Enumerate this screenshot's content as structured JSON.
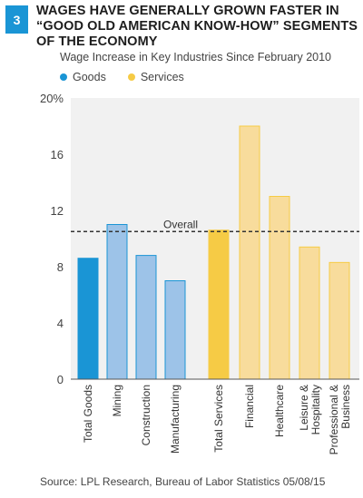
{
  "badge": "3",
  "title": "WAGES HAVE GENERALLY GROWN FASTER IN “GOOD OLD AMERICAN KNOW-HOW” SEGMENTS OF THE ECONOMY",
  "source": "Source: LPL Research, Bureau of Labor Statistics   05/08/15",
  "chart_data": {
    "type": "bar",
    "title": "Wage Increase in Key Industries Since February 2010",
    "ylim": [
      0,
      20
    ],
    "y_ticks": [
      "20%",
      "16",
      "12",
      "8",
      "4",
      "0"
    ],
    "grid": false,
    "legend": {
      "placement": "top-left",
      "entries": [
        "Goods",
        "Services"
      ]
    },
    "colors": {
      "goods_total": "#1a95d5",
      "goods": "#9dc3e8",
      "services_total": "#f6cb45",
      "services": "#f8dc9c",
      "goods_legend": "#1a95d5",
      "services_legend": "#f6cb45"
    },
    "reference_line": {
      "label": "Overall",
      "value": 10.5
    },
    "categories": [
      "Total Goods",
      "Mining",
      "Construction",
      "Manufacturing",
      "Total Services",
      "Financial",
      "Healthcare",
      "Leisure & Hospitality",
      "Professional & Business"
    ],
    "category_lines": [
      [
        "Total Goods"
      ],
      [
        "Mining"
      ],
      [
        "Construction"
      ],
      [
        "Manufacturing"
      ],
      [
        "Total Services"
      ],
      [
        "Financial"
      ],
      [
        "Healthcare"
      ],
      [
        "Leisure &",
        "Hospitality"
      ],
      [
        "Professional &",
        "Business"
      ]
    ],
    "groups": [
      "Goods",
      "Goods",
      "Goods",
      "Goods",
      "Services",
      "Services",
      "Services",
      "Services",
      "Services"
    ],
    "is_total": [
      true,
      false,
      false,
      false,
      true,
      false,
      false,
      false,
      false
    ],
    "values": [
      8.6,
      11.0,
      8.8,
      7.0,
      10.6,
      18.0,
      13.0,
      9.4,
      8.3
    ]
  }
}
